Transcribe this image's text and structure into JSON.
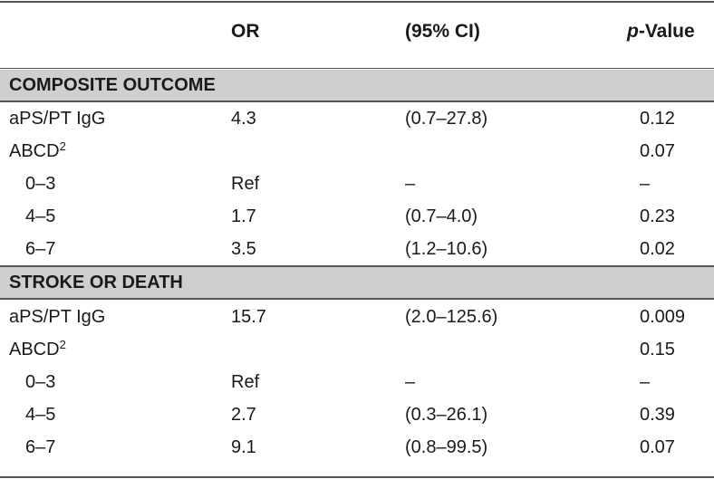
{
  "header": {
    "or": "OR",
    "ci": "(95% CI)",
    "p_prefix": "p",
    "p_suffix": "-Value"
  },
  "sections": [
    {
      "title": "COMPOSITE OUTCOME",
      "rows": [
        {
          "label": "aPS/PT IgG",
          "sup": "",
          "or": "4.3",
          "ci": "(0.7–27.8)",
          "p": "0.12"
        },
        {
          "label": "ABCD",
          "sup": "2",
          "or": "",
          "ci": "",
          "p": "0.07"
        },
        {
          "label": "0–3",
          "sup": "",
          "or": "Ref",
          "ci": "–",
          "p": "–"
        },
        {
          "label": "4–5",
          "sup": "",
          "or": "1.7",
          "ci": "(0.7–4.0)",
          "p": "0.23"
        },
        {
          "label": "6–7",
          "sup": "",
          "or": "3.5",
          "ci": "(1.2–10.6)",
          "p": "0.02"
        }
      ]
    },
    {
      "title": "STROKE OR DEATH",
      "rows": [
        {
          "label": "aPS/PT IgG",
          "sup": "",
          "or": "15.7",
          "ci": "(2.0–125.6)",
          "p": "0.009"
        },
        {
          "label": "ABCD",
          "sup": "2",
          "or": "",
          "ci": "",
          "p": "0.15"
        },
        {
          "label": "0–3",
          "sup": "",
          "or": "Ref",
          "ci": "–",
          "p": "–"
        },
        {
          "label": "4–5",
          "sup": "",
          "or": "2.7",
          "ci": "(0.3–26.1)",
          "p": "0.39"
        },
        {
          "label": "6–7",
          "sup": "",
          "or": "9.1",
          "ci": "(0.8–99.5)",
          "p": "0.07"
        }
      ]
    }
  ]
}
